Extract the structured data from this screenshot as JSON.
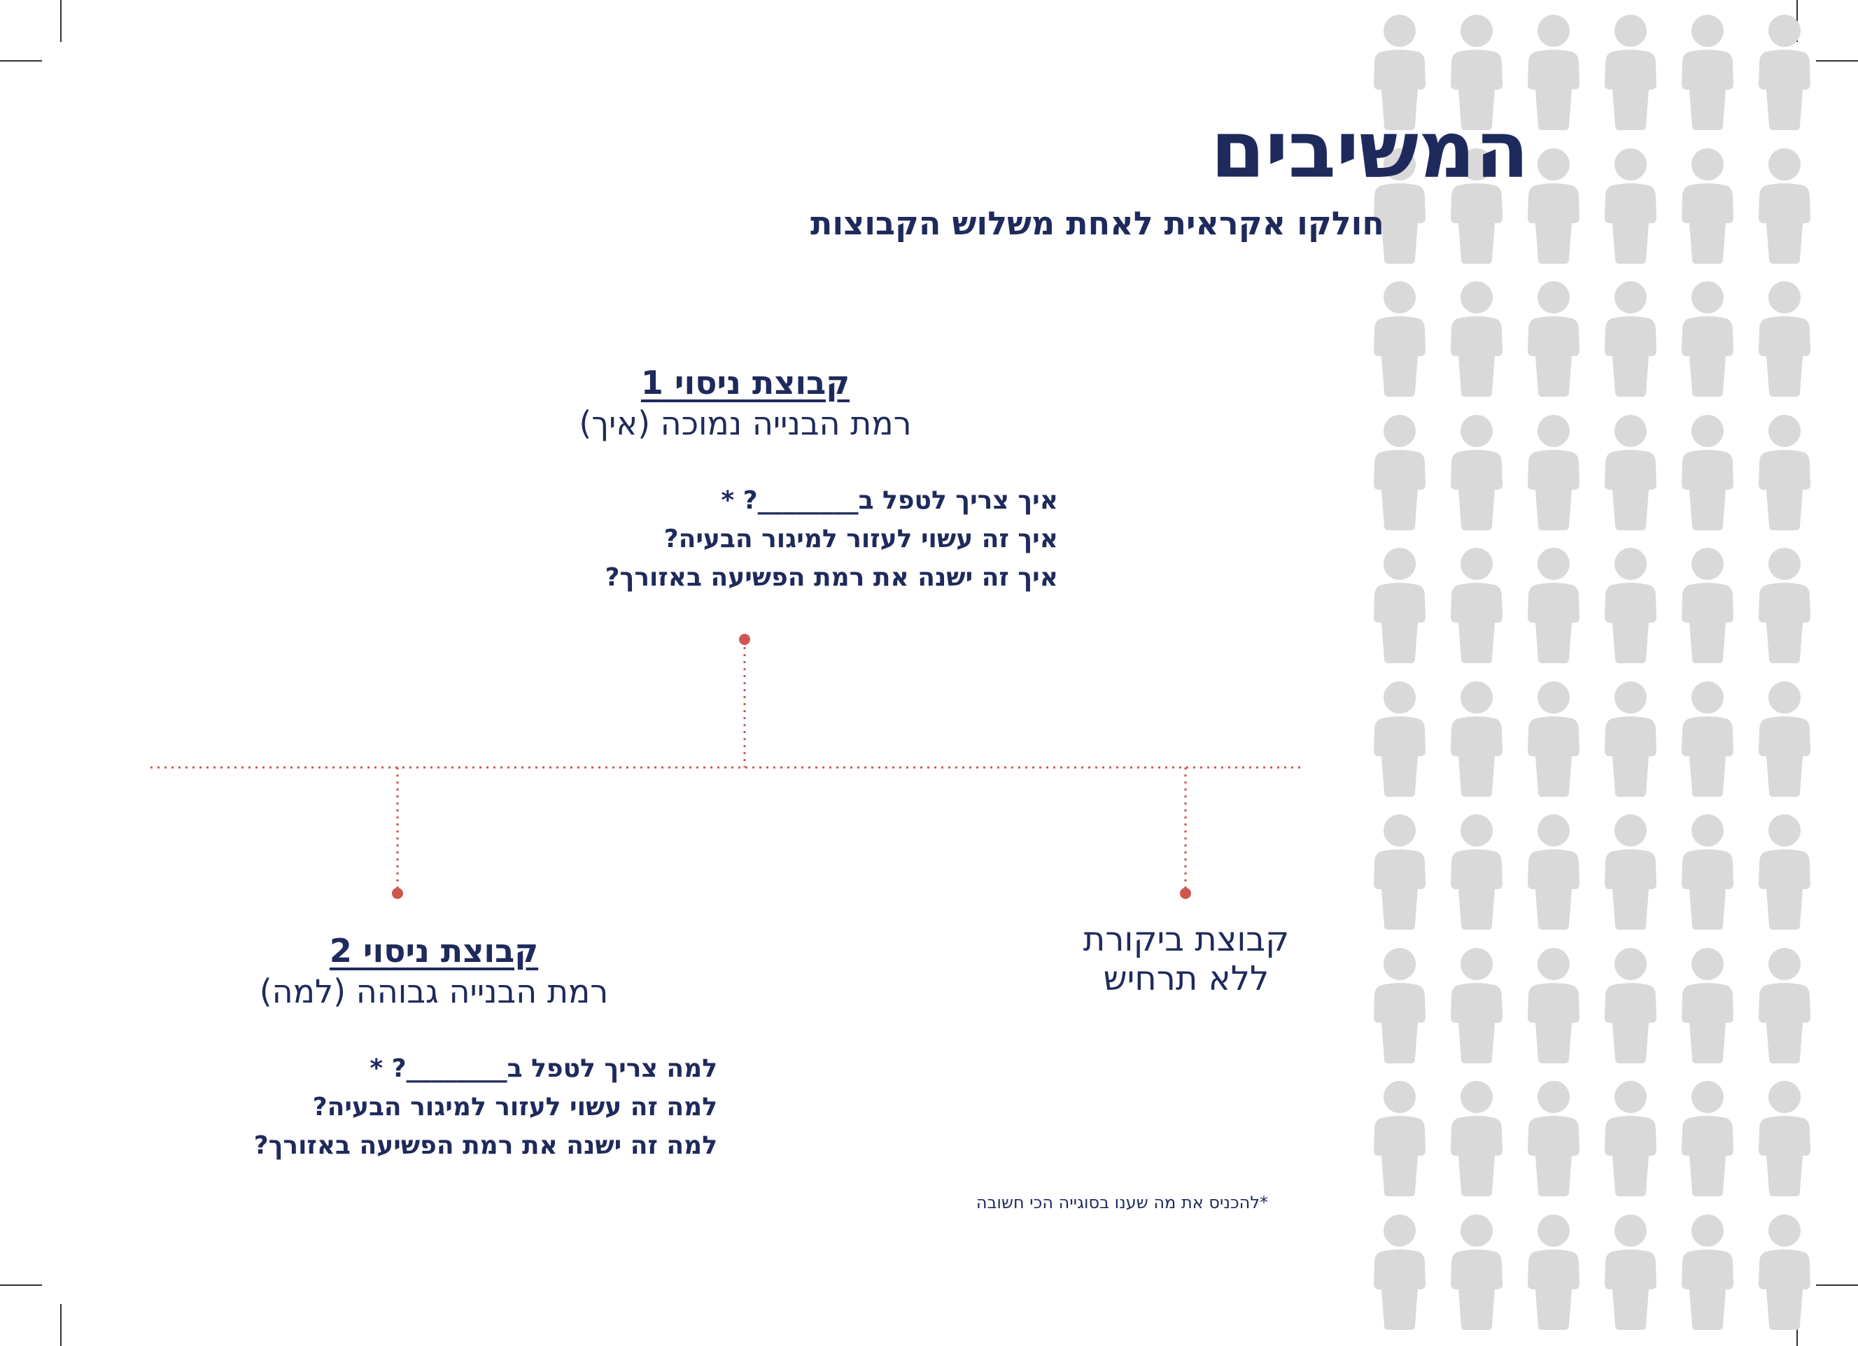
{
  "title": "המשיבים",
  "subtitle": "חולקו אקראית לאחת משלוש הקבוצות",
  "groups": {
    "exp1": {
      "title": "קבוצת ניסוי 1",
      "subtitle": "רמת הבנייה נמוכה (איך)",
      "questions": [
        "איך צריך לטפל ב________? *",
        "איך זה עשוי לעזור למיגור הבעיה?",
        "איך זה ישנה את רמת הפשיעה באזורך?"
      ]
    },
    "exp2": {
      "title": "קבוצת ניסוי 2",
      "subtitle": "רמת הבנייה גבוהה (למה)",
      "questions": [
        "למה צריך לטפל ב________? *",
        "למה זה עשוי לעזור למיגור הבעיה?",
        "למה זה ישנה את רמת הפשיעה באזורך?"
      ]
    },
    "control": {
      "line1": "קבוצת ביקורת",
      "line2": "ללא תרחיש"
    }
  },
  "footnote": "*להכניס את מה שענו בסוגייה הכי חשובה",
  "colors": {
    "navy": "#1f2a5c",
    "connector": "#d0554f",
    "person": "#d9d9d9"
  },
  "icons": {
    "person": "person-silhouette-icon"
  }
}
